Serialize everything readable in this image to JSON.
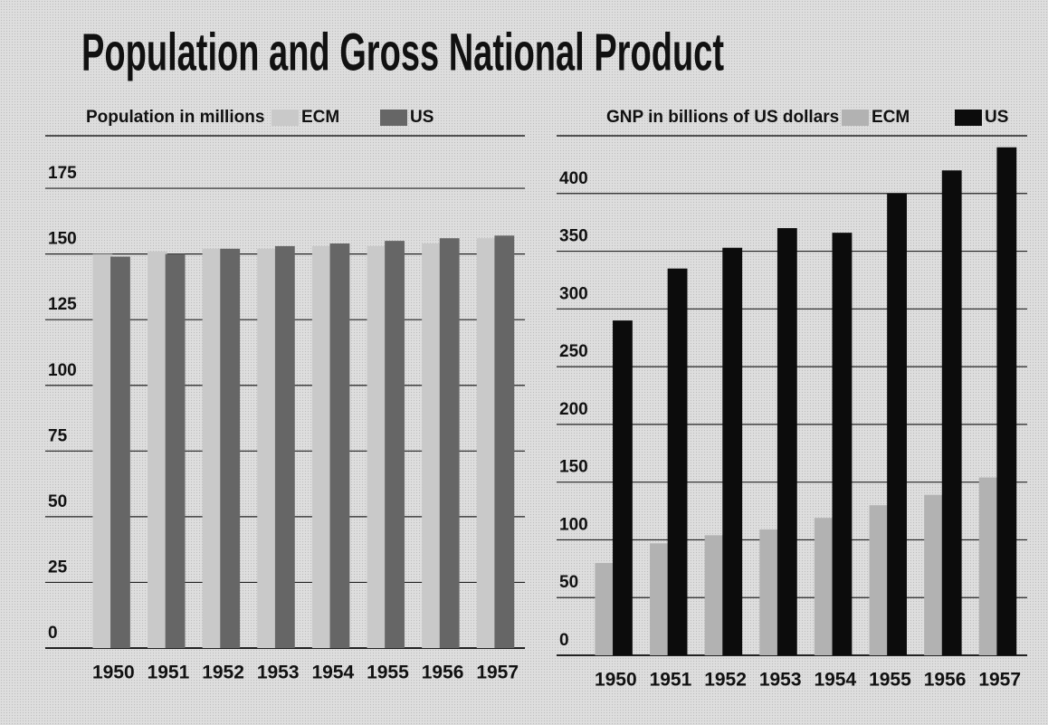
{
  "title": "Population and Gross National Product",
  "chart_data": [
    {
      "type": "bar",
      "y_label": "Population in millions",
      "categories": [
        "1950",
        "1951",
        "1952",
        "1953",
        "1954",
        "1955",
        "1956",
        "1957"
      ],
      "series": [
        {
          "name": "ECM",
          "color": "#c9c9c9",
          "values": [
            150,
            151,
            152,
            152,
            153,
            153,
            154,
            156
          ]
        },
        {
          "name": "US",
          "color": "#666666",
          "values": [
            149,
            150,
            152,
            153,
            154,
            155,
            156,
            157
          ]
        }
      ],
      "ylim": [
        0,
        195
      ],
      "yticks": [
        0,
        25,
        50,
        75,
        100,
        125,
        150,
        175
      ],
      "grid": true
    },
    {
      "type": "bar",
      "y_label": "GNP in billions of US dollars",
      "categories": [
        "1950",
        "1951",
        "1952",
        "1953",
        "1954",
        "1955",
        "1956",
        "1957"
      ],
      "series": [
        {
          "name": "ECM",
          "color": "#b2b2b2",
          "values": [
            80,
            97,
            104,
            109,
            119,
            130,
            139,
            154
          ]
        },
        {
          "name": "US",
          "color": "#0c0c0c",
          "values": [
            290,
            335,
            353,
            370,
            366,
            400,
            420,
            440
          ]
        }
      ],
      "ylim": [
        0,
        450
      ],
      "yticks": [
        0,
        50,
        100,
        150,
        200,
        250,
        300,
        350,
        400
      ],
      "grid": true
    }
  ]
}
